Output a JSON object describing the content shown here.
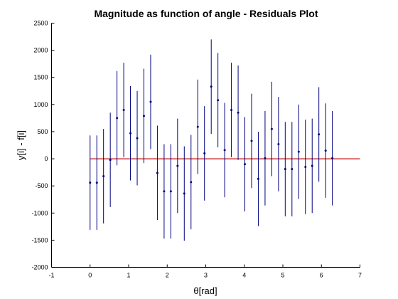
{
  "chart_data": {
    "type": "scatter",
    "title": "Magnitude as function of  angle - Residuals Plot",
    "xlabel": "θ[rad]",
    "ylabel": "y[i] - f[i]",
    "xlim": [
      -1,
      7
    ],
    "ylim": [
      -2000,
      2500
    ],
    "xticks": [
      -1,
      0,
      1,
      2,
      3,
      4,
      5,
      6,
      7
    ],
    "yticks": [
      -2000,
      -1500,
      -1000,
      -500,
      0,
      500,
      1000,
      1500,
      2000,
      2500
    ],
    "grid": false,
    "legend": "none",
    "series": [
      {
        "style": "points-with-error-bars",
        "x": [
          0,
          0.175,
          0.349,
          0.524,
          0.698,
          0.873,
          1.047,
          1.222,
          1.396,
          1.571,
          1.745,
          1.92,
          2.094,
          2.269,
          2.443,
          2.618,
          2.793,
          2.967,
          3.142,
          3.316,
          3.491,
          3.665,
          3.84,
          4.014,
          4.189,
          4.363,
          4.538,
          4.712,
          4.887,
          5.061,
          5.236,
          5.411,
          5.585,
          5.76,
          5.934,
          6.109,
          6.283
        ],
        "y": [
          -440,
          -440,
          -320,
          -20,
          750,
          900,
          470,
          380,
          790,
          1050,
          -260,
          -600,
          -600,
          -130,
          -640,
          -430,
          590,
          100,
          1330,
          1080,
          160,
          900,
          850,
          -100,
          330,
          -370,
          10,
          550,
          270,
          -190,
          -190,
          130,
          -150,
          -130,
          450,
          150,
          10
        ],
        "error": [
          870,
          870,
          870,
          870,
          870,
          870,
          870,
          870,
          870,
          870,
          870,
          870,
          870,
          870,
          870,
          870,
          870,
          870,
          870,
          870,
          870,
          870,
          870,
          870,
          870,
          870,
          870,
          870,
          870,
          870,
          870,
          870,
          870,
          870,
          870,
          870,
          870
        ]
      }
    ],
    "reference_line": {
      "y": 0,
      "x_range": [
        0,
        7
      ]
    },
    "colors": {
      "points": "#00007f",
      "error_bars": "#00007f",
      "reference_line": "#c00000",
      "axes": "#000000"
    }
  }
}
